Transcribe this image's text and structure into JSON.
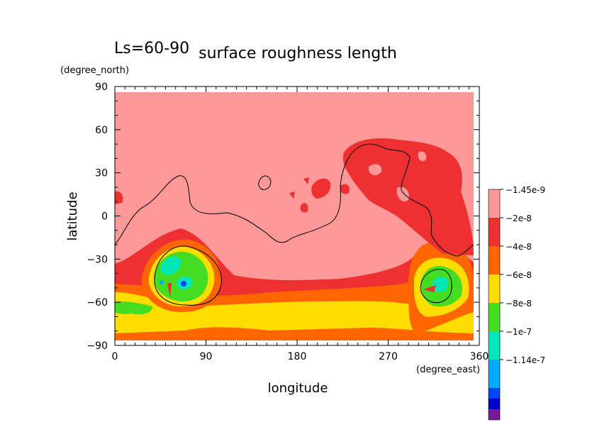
{
  "chart_data": {
    "type": "heatmap",
    "title": "surface roughness length",
    "subtitle": "Ls=60-90",
    "xlabel": "longitude",
    "ylabel": "latitude",
    "x_units": "(degree_east)",
    "y_units": "(degree_north)",
    "xlim": [
      0,
      360
    ],
    "ylim": [
      -90,
      90
    ],
    "x_ticks": [
      "0",
      "90",
      "180",
      "270",
      "360"
    ],
    "y_ticks": [
      "90",
      "60",
      "30",
      "0",
      "−30",
      "−60",
      "−90"
    ],
    "grid": false,
    "legend_position": "right",
    "colorbar": [
      {
        "label": "−1.45e-9",
        "color": "#ff9999"
      },
      {
        "label": "−2e-8",
        "color": "#ee3030"
      },
      {
        "label": "−4e-8",
        "color": "#ff6600"
      },
      {
        "label": "−6e-8",
        "color": "#ffdd00"
      },
      {
        "label": "−8e-8",
        "color": "#44dd22"
      },
      {
        "label": "−1e-7",
        "color": "#00e6b8"
      },
      {
        "label": "−1.14e-7",
        "color": "#00aaff"
      },
      {
        "label": "",
        "color": "#0044ff"
      },
      {
        "label": "",
        "color": "#0000cc"
      },
      {
        "label": "",
        "color": "#7a1a9a"
      }
    ]
  }
}
